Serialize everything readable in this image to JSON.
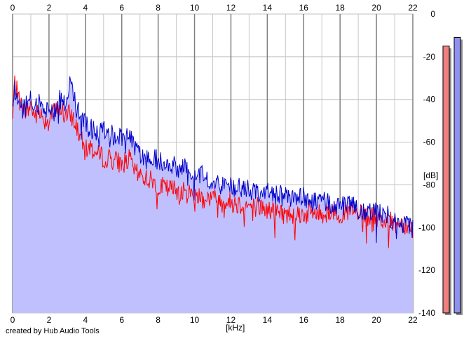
{
  "chart_data": {
    "type": "area",
    "xlabel": "[kHz]",
    "ylabel": "[dB]",
    "xlim": [
      0,
      22
    ],
    "ylim": [
      -140,
      0
    ],
    "x_ticks": [
      0,
      2,
      4,
      6,
      8,
      10,
      12,
      14,
      16,
      18,
      20,
      22
    ],
    "y_ticks": [
      0,
      -20,
      -40,
      -60,
      -80,
      -100,
      -120,
      -140
    ],
    "grid": true,
    "colors": {
      "fill": "#c0c0ff",
      "left_channel": "#ff0000",
      "right_channel": "#0000cc",
      "left_level_bar": "#f08080",
      "right_level_bar": "#9090f0"
    },
    "series": [
      {
        "color": "#ff0000",
        "x": [
          0,
          0.1,
          0.3,
          0.5,
          0.8,
          1.0,
          1.2,
          1.5,
          1.8,
          2.0,
          2.3,
          2.6,
          2.9,
          3.2,
          3.5,
          3.8,
          4.0,
          4.3,
          4.6,
          5.0,
          5.5,
          6.0,
          6.4,
          6.8,
          7.2,
          7.6,
          8.0,
          8.5,
          9.0,
          9.5,
          10.0,
          10.5,
          11.0,
          11.5,
          12.0,
          12.5,
          13.0,
          13.5,
          14.0,
          14.5,
          15.0,
          15.5,
          16.0,
          16.5,
          17.0,
          17.5,
          18.0,
          18.5,
          19.0,
          19.5,
          20.0,
          20.5,
          21.0,
          21.5,
          22.0
        ],
        "y": [
          -50,
          -32,
          -38,
          -44,
          -46,
          -42,
          -48,
          -46,
          -50,
          -48,
          -46,
          -44,
          -48,
          -47,
          -52,
          -60,
          -64,
          -62,
          -66,
          -67,
          -68,
          -70,
          -68,
          -75,
          -76,
          -78,
          -80,
          -82,
          -82,
          -84,
          -84,
          -86,
          -86,
          -88,
          -88,
          -89,
          -90,
          -90,
          -92,
          -92,
          -94,
          -93,
          -94,
          -93,
          -94,
          -92,
          -93,
          -93,
          -94,
          -95,
          -95,
          -97,
          -98,
          -98,
          -100
        ]
      },
      {
        "color": "#0000cc",
        "x": [
          0,
          0.1,
          0.3,
          0.5,
          0.8,
          1.0,
          1.2,
          1.5,
          1.8,
          2.0,
          2.3,
          2.6,
          2.9,
          3.2,
          3.5,
          3.8,
          4.0,
          4.3,
          4.6,
          5.0,
          5.5,
          6.0,
          6.4,
          6.8,
          7.2,
          7.6,
          8.0,
          8.5,
          9.0,
          9.5,
          10.0,
          10.5,
          11.0,
          11.5,
          12.0,
          12.5,
          13.0,
          13.5,
          14.0,
          14.5,
          15.0,
          15.5,
          16.0,
          16.5,
          17.0,
          17.5,
          18.0,
          18.5,
          19.0,
          19.5,
          20.0,
          20.5,
          21.0,
          21.5,
          22.0
        ],
        "y": [
          -45,
          -35,
          -40,
          -44,
          -43,
          -40,
          -44,
          -42,
          -45,
          -44,
          -42,
          -40,
          -42,
          -30,
          -45,
          -48,
          -52,
          -54,
          -56,
          -54,
          -56,
          -58,
          -55,
          -64,
          -68,
          -68,
          -68,
          -70,
          -72,
          -72,
          -74,
          -76,
          -78,
          -80,
          -80,
          -82,
          -82,
          -83,
          -84,
          -84,
          -86,
          -86,
          -86,
          -88,
          -88,
          -89,
          -90,
          -90,
          -91,
          -92,
          -92,
          -94,
          -96,
          -98,
          -100
        ]
      }
    ],
    "levels": {
      "min": -140,
      "max": 0,
      "left": -15,
      "right": -11
    }
  },
  "credit": "created by Hub Audio Tools"
}
